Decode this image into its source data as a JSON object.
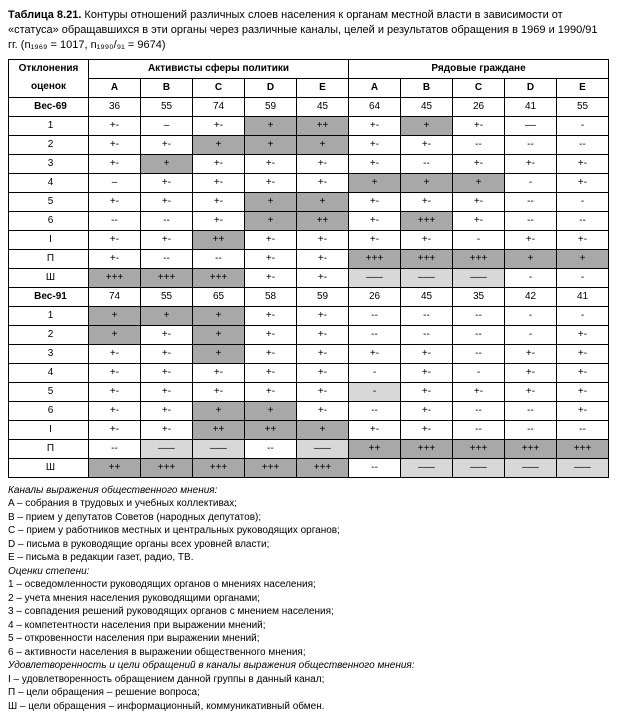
{
  "title_prefix": "Таблица 8.21.",
  "title_rest": " Контуры отношений различных слоев населения к органам местной власти в зависимости от «статуса» обращавшихся в эти органы через различные каналы, целей и результатов обращения в 1969 и 1990/91 гг. (n₁₉₆₉ = 1017, n₁₉₉₀/₉₁ = 9674)",
  "colors": {
    "dark": "#a8a8a8",
    "light": "#d8d8d8",
    "border": "#000000",
    "bg": "#ffffff",
    "text": "#000000"
  },
  "header": {
    "row_title_l1": "Отклонения",
    "row_title_l2": "оценок",
    "group1": "Активисты сферы политики",
    "group2": "Рядовые граждане",
    "cols": [
      "A",
      "B",
      "C",
      "D",
      "E",
      "A",
      "B",
      "C",
      "D",
      "E"
    ]
  },
  "rows": [
    {
      "label": "Вес-69",
      "bold": true,
      "cells": [
        {
          "v": "36"
        },
        {
          "v": "55"
        },
        {
          "v": "74"
        },
        {
          "v": "59"
        },
        {
          "v": "45"
        },
        {
          "v": "64"
        },
        {
          "v": "45"
        },
        {
          "v": "26"
        },
        {
          "v": "41"
        },
        {
          "v": "55"
        }
      ]
    },
    {
      "label": "1",
      "cells": [
        {
          "v": "+-"
        },
        {
          "v": "–"
        },
        {
          "v": "+-"
        },
        {
          "v": "+",
          "bg": "dark"
        },
        {
          "v": "++",
          "bg": "dark"
        },
        {
          "v": "+-"
        },
        {
          "v": "+",
          "bg": "dark"
        },
        {
          "v": "+-"
        },
        {
          "v": "––"
        },
        {
          "v": "-"
        }
      ]
    },
    {
      "label": "2",
      "cells": [
        {
          "v": "+-"
        },
        {
          "v": "+-"
        },
        {
          "v": "+",
          "bg": "dark"
        },
        {
          "v": "+",
          "bg": "dark"
        },
        {
          "v": "+",
          "bg": "dark"
        },
        {
          "v": "+-"
        },
        {
          "v": "+-"
        },
        {
          "v": "--"
        },
        {
          "v": "--"
        },
        {
          "v": "--"
        }
      ]
    },
    {
      "label": "3",
      "cells": [
        {
          "v": "+-"
        },
        {
          "v": "+",
          "bg": "dark"
        },
        {
          "v": "+-"
        },
        {
          "v": "+-"
        },
        {
          "v": "+-"
        },
        {
          "v": "+-"
        },
        {
          "v": "--"
        },
        {
          "v": "+-"
        },
        {
          "v": "+-"
        },
        {
          "v": "+-"
        }
      ]
    },
    {
      "label": "4",
      "cells": [
        {
          "v": "–"
        },
        {
          "v": "+-"
        },
        {
          "v": "+-"
        },
        {
          "v": "+-"
        },
        {
          "v": "+-"
        },
        {
          "v": "+",
          "bg": "dark"
        },
        {
          "v": "+",
          "bg": "dark"
        },
        {
          "v": "+",
          "bg": "dark"
        },
        {
          "v": "-"
        },
        {
          "v": "+-"
        }
      ]
    },
    {
      "label": "5",
      "cells": [
        {
          "v": "+-"
        },
        {
          "v": "+-"
        },
        {
          "v": "+-"
        },
        {
          "v": "+",
          "bg": "dark"
        },
        {
          "v": "+",
          "bg": "dark"
        },
        {
          "v": "+-"
        },
        {
          "v": "+-"
        },
        {
          "v": "+-"
        },
        {
          "v": "--"
        },
        {
          "v": "-"
        }
      ]
    },
    {
      "label": "6",
      "cells": [
        {
          "v": "--"
        },
        {
          "v": "--"
        },
        {
          "v": "+-"
        },
        {
          "v": "+",
          "bg": "dark"
        },
        {
          "v": "++",
          "bg": "dark"
        },
        {
          "v": "+-"
        },
        {
          "v": "+++",
          "bg": "dark"
        },
        {
          "v": "+-"
        },
        {
          "v": "--"
        },
        {
          "v": "--"
        }
      ]
    },
    {
      "label": "I",
      "cells": [
        {
          "v": "+-"
        },
        {
          "v": "+-"
        },
        {
          "v": "++",
          "bg": "dark"
        },
        {
          "v": "+-"
        },
        {
          "v": "+-"
        },
        {
          "v": "+-"
        },
        {
          "v": "+-"
        },
        {
          "v": "-"
        },
        {
          "v": "+-"
        },
        {
          "v": "+-"
        }
      ]
    },
    {
      "label": "П",
      "cells": [
        {
          "v": "+-"
        },
        {
          "v": "--"
        },
        {
          "v": "--"
        },
        {
          "v": "+-"
        },
        {
          "v": "+-"
        },
        {
          "v": "+++",
          "bg": "dark"
        },
        {
          "v": "+++",
          "bg": "dark"
        },
        {
          "v": "+++",
          "bg": "dark"
        },
        {
          "v": "+",
          "bg": "dark"
        },
        {
          "v": "+",
          "bg": "dark"
        }
      ]
    },
    {
      "label": "Ш",
      "cells": [
        {
          "v": "+++",
          "bg": "dark"
        },
        {
          "v": "+++",
          "bg": "dark"
        },
        {
          "v": "+++",
          "bg": "dark"
        },
        {
          "v": "+-"
        },
        {
          "v": "+-"
        },
        {
          "v": "–––",
          "bg": "light"
        },
        {
          "v": "–––",
          "bg": "light"
        },
        {
          "v": "–––",
          "bg": "light"
        },
        {
          "v": "-"
        },
        {
          "v": "-"
        }
      ]
    },
    {
      "label": "Вес-91",
      "bold": true,
      "cells": [
        {
          "v": "74"
        },
        {
          "v": "55"
        },
        {
          "v": "65"
        },
        {
          "v": "58"
        },
        {
          "v": "59"
        },
        {
          "v": "26"
        },
        {
          "v": "45"
        },
        {
          "v": "35"
        },
        {
          "v": "42"
        },
        {
          "v": "41"
        }
      ]
    },
    {
      "label": "1",
      "cells": [
        {
          "v": "+",
          "bg": "dark"
        },
        {
          "v": "+",
          "bg": "dark"
        },
        {
          "v": "+",
          "bg": "dark"
        },
        {
          "v": "+-"
        },
        {
          "v": "+-"
        },
        {
          "v": "--"
        },
        {
          "v": "--"
        },
        {
          "v": "--"
        },
        {
          "v": "-"
        },
        {
          "v": "-"
        }
      ]
    },
    {
      "label": "2",
      "cells": [
        {
          "v": "+",
          "bg": "dark"
        },
        {
          "v": "+-"
        },
        {
          "v": "+",
          "bg": "dark"
        },
        {
          "v": "+-"
        },
        {
          "v": "+-"
        },
        {
          "v": "--"
        },
        {
          "v": "--"
        },
        {
          "v": "--"
        },
        {
          "v": "-"
        },
        {
          "v": "+-"
        }
      ]
    },
    {
      "label": "3",
      "cells": [
        {
          "v": "+-"
        },
        {
          "v": "+-"
        },
        {
          "v": "+",
          "bg": "dark"
        },
        {
          "v": "+-"
        },
        {
          "v": "+-"
        },
        {
          "v": "+-"
        },
        {
          "v": "+-"
        },
        {
          "v": "--"
        },
        {
          "v": "+-"
        },
        {
          "v": "+-"
        }
      ]
    },
    {
      "label": "4",
      "cells": [
        {
          "v": "+-"
        },
        {
          "v": "+-"
        },
        {
          "v": "+-"
        },
        {
          "v": "+-"
        },
        {
          "v": "+-"
        },
        {
          "v": "-"
        },
        {
          "v": "+-"
        },
        {
          "v": "-"
        },
        {
          "v": "+-"
        },
        {
          "v": "+-"
        }
      ]
    },
    {
      "label": "5",
      "cells": [
        {
          "v": "+-"
        },
        {
          "v": "+-"
        },
        {
          "v": "+-"
        },
        {
          "v": "+-"
        },
        {
          "v": "+-"
        },
        {
          "v": "-",
          "bg": "light"
        },
        {
          "v": "+-"
        },
        {
          "v": "+-"
        },
        {
          "v": "+-"
        },
        {
          "v": "+-"
        }
      ]
    },
    {
      "label": "6",
      "cells": [
        {
          "v": "+-"
        },
        {
          "v": "+-"
        },
        {
          "v": "+",
          "bg": "dark"
        },
        {
          "v": "+",
          "bg": "dark"
        },
        {
          "v": "+-"
        },
        {
          "v": "--"
        },
        {
          "v": "+-"
        },
        {
          "v": "--"
        },
        {
          "v": "--"
        },
        {
          "v": "+-"
        }
      ]
    },
    {
      "label": "I",
      "cells": [
        {
          "v": "+-"
        },
        {
          "v": "+-"
        },
        {
          "v": "++",
          "bg": "dark"
        },
        {
          "v": "++",
          "bg": "dark"
        },
        {
          "v": "+",
          "bg": "dark"
        },
        {
          "v": "+-"
        },
        {
          "v": "+-"
        },
        {
          "v": "--"
        },
        {
          "v": "--"
        },
        {
          "v": "--"
        }
      ]
    },
    {
      "label": "П",
      "cells": [
        {
          "v": "--"
        },
        {
          "v": "–––",
          "bg": "light"
        },
        {
          "v": "–––",
          "bg": "light"
        },
        {
          "v": "--"
        },
        {
          "v": "–––",
          "bg": "light"
        },
        {
          "v": "++",
          "bg": "dark"
        },
        {
          "v": "+++",
          "bg": "dark"
        },
        {
          "v": "+++",
          "bg": "dark"
        },
        {
          "v": "+++",
          "bg": "dark"
        },
        {
          "v": "+++",
          "bg": "dark"
        }
      ]
    },
    {
      "label": "Ш",
      "cells": [
        {
          "v": "++",
          "bg": "dark"
        },
        {
          "v": "+++",
          "bg": "dark"
        },
        {
          "v": "+++",
          "bg": "dark"
        },
        {
          "v": "+++",
          "bg": "dark"
        },
        {
          "v": "+++",
          "bg": "dark"
        },
        {
          "v": "--"
        },
        {
          "v": "–––",
          "bg": "light"
        },
        {
          "v": "–––",
          "bg": "light"
        },
        {
          "v": "–––",
          "bg": "light"
        },
        {
          "v": "–––",
          "bg": "light"
        }
      ]
    }
  ],
  "legend": {
    "sec1_title": "Каналы выражения общественного мнения:",
    "sec1": [
      "A – собрания в трудовых и учебных коллективах;",
      "B – прием у депутатов Советов (народных депутатов);",
      "C – прием у работников местных и центральных руководящих органов;",
      "D – письма в руководящие органы всех уровней власти;",
      "E – письма в редакции газет, радио, ТВ."
    ],
    "sec2_title": "Оценки степени:",
    "sec2": [
      "1 – осведомленности руководящих органов о мнениях населения;",
      "2 – учета мнения населения руководящими органами;",
      "3 – совпадения решений руководящих органов с мнением населения;",
      "4 – компетентности населения при выражении мнений;",
      "5 – откровенности населения при выражении мнений;",
      "6 – активности населения в выражении общественного мнения;"
    ],
    "sec3_title": "Удовлетворенность и цели обращений в каналы выражения общественного мнения:",
    "sec3": [
      "I – удовлетворенность обращением данной группы в данный канал;",
      "П – цели обращения – решение вопроса;",
      "Ш – цели обращения – информационный, коммуникативный обмен."
    ]
  }
}
